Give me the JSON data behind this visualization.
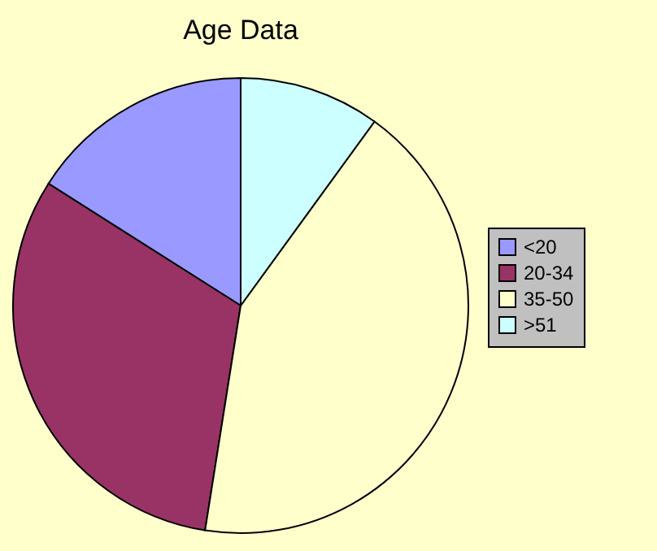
{
  "chart_data": {
    "type": "pie",
    "title": "Age Data",
    "categories": [
      "<20",
      "20-34",
      "35-50",
      ">51"
    ],
    "values": [
      16,
      31.5,
      42.5,
      10
    ],
    "colors": [
      "#9999ff",
      "#993366",
      "#ffffcc",
      "#ccffff"
    ],
    "legend": "right"
  }
}
